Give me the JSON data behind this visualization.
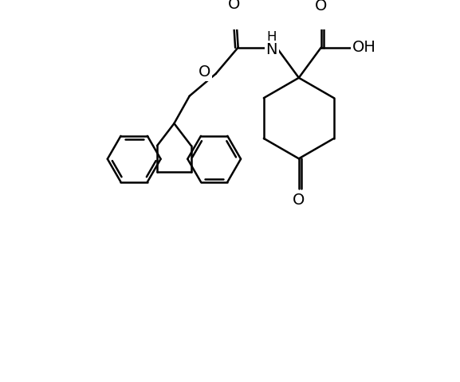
{
  "bg_color": "#ffffff",
  "line_color": "#000000",
  "lw": 1.8,
  "figsize": [
    5.77,
    4.8
  ],
  "dpi": 100,
  "xlim": [
    -2.5,
    5.5
  ],
  "ylim": [
    -5.5,
    3.2
  ],
  "label_fs": 14,
  "label_fs_small": 12
}
